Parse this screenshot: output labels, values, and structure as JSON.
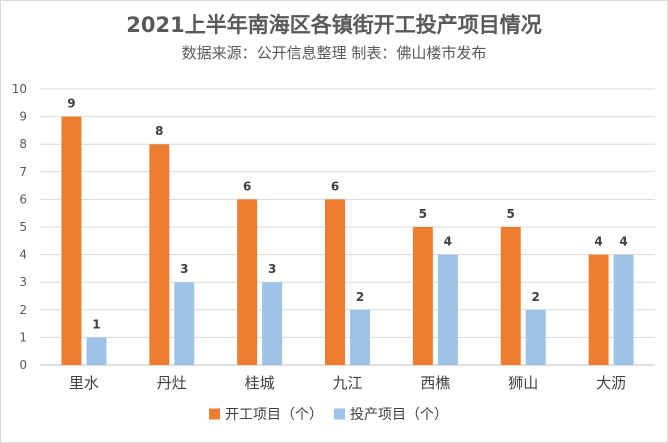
{
  "chart_data": {
    "type": "bar",
    "title": "2021上半年南海区各镇街开工投产项目情况",
    "subtitle": "数据来源：公开信息整理  制表：佛山楼市发布",
    "categories": [
      "里水",
      "丹灶",
      "桂城",
      "九江",
      "西樵",
      "狮山",
      "大沥"
    ],
    "series": [
      {
        "name": "开工项目（个）",
        "color": "#ED7D31",
        "values": [
          9,
          8,
          6,
          6,
          5,
          5,
          4
        ]
      },
      {
        "name": "投产项目（个）",
        "color": "#9DC3E6",
        "values": [
          1,
          3,
          3,
          2,
          4,
          2,
          4
        ]
      }
    ],
    "ylim": [
      0,
      10
    ],
    "yticks": [
      0,
      1,
      2,
      3,
      4,
      5,
      6,
      7,
      8,
      9,
      10
    ],
    "grid": true,
    "legend": "bottom",
    "data_labels": true
  }
}
